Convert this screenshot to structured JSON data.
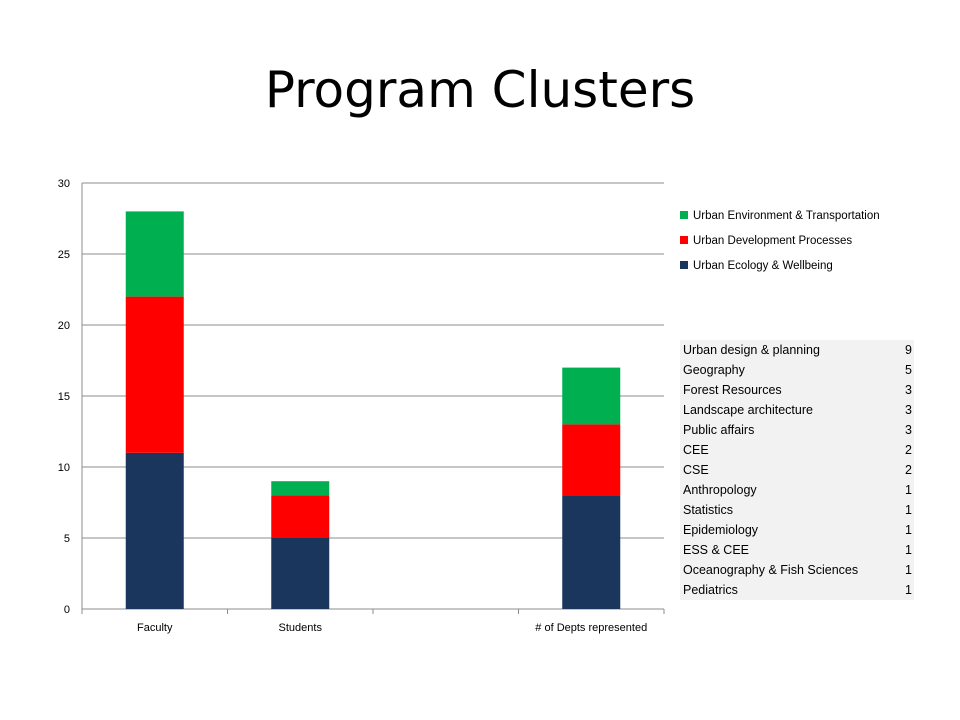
{
  "title": "Program Clusters",
  "colors": {
    "Urban Ecology & Wellbeing": "#1a365d",
    "Urban Development Processes": "#ff0000",
    "Urban Environment & Transportation": "#00b050",
    "grid": "#8c8c8c",
    "table_bg": "#f2f2f2"
  },
  "chart_data": {
    "type": "bar",
    "stacked": true,
    "categories": [
      "Faculty",
      "Students",
      "",
      "# of Depts represented"
    ],
    "series": [
      {
        "name": "Urban Ecology & Wellbeing",
        "values": [
          11,
          5,
          0,
          8
        ]
      },
      {
        "name": "Urban Development Processes",
        "values": [
          11,
          3,
          0,
          5
        ]
      },
      {
        "name": "Urban Environment & Transportation",
        "values": [
          6,
          1,
          0,
          4
        ]
      }
    ],
    "ylim": [
      0,
      30
    ],
    "yticks": [
      0,
      5,
      10,
      15,
      20,
      25,
      30
    ],
    "grid": true,
    "legend_position": "right",
    "legend_order": [
      "Urban Environment & Transportation",
      "Urban Development Processes",
      "Urban Ecology & Wellbeing"
    ]
  },
  "departments": [
    {
      "name": "Urban design & planning",
      "count": "9"
    },
    {
      "name": "Geography",
      "count": "5"
    },
    {
      "name": "Forest Resources",
      "count": "3"
    },
    {
      "name": "Landscape architecture",
      "count": "3"
    },
    {
      "name": "Public affairs",
      "count": "3"
    },
    {
      "name": "CEE",
      "count": "2"
    },
    {
      "name": "CSE",
      "count": "2"
    },
    {
      "name": "Anthropology",
      "count": "1"
    },
    {
      "name": "Statistics",
      "count": "1"
    },
    {
      "name": "Epidemiology",
      "count": "1"
    },
    {
      "name": "ESS & CEE",
      "count": "1"
    },
    {
      "name": "Oceanography & Fish Sciences",
      "count": "1"
    },
    {
      "name": "Pediatrics",
      "count": "1"
    }
  ]
}
